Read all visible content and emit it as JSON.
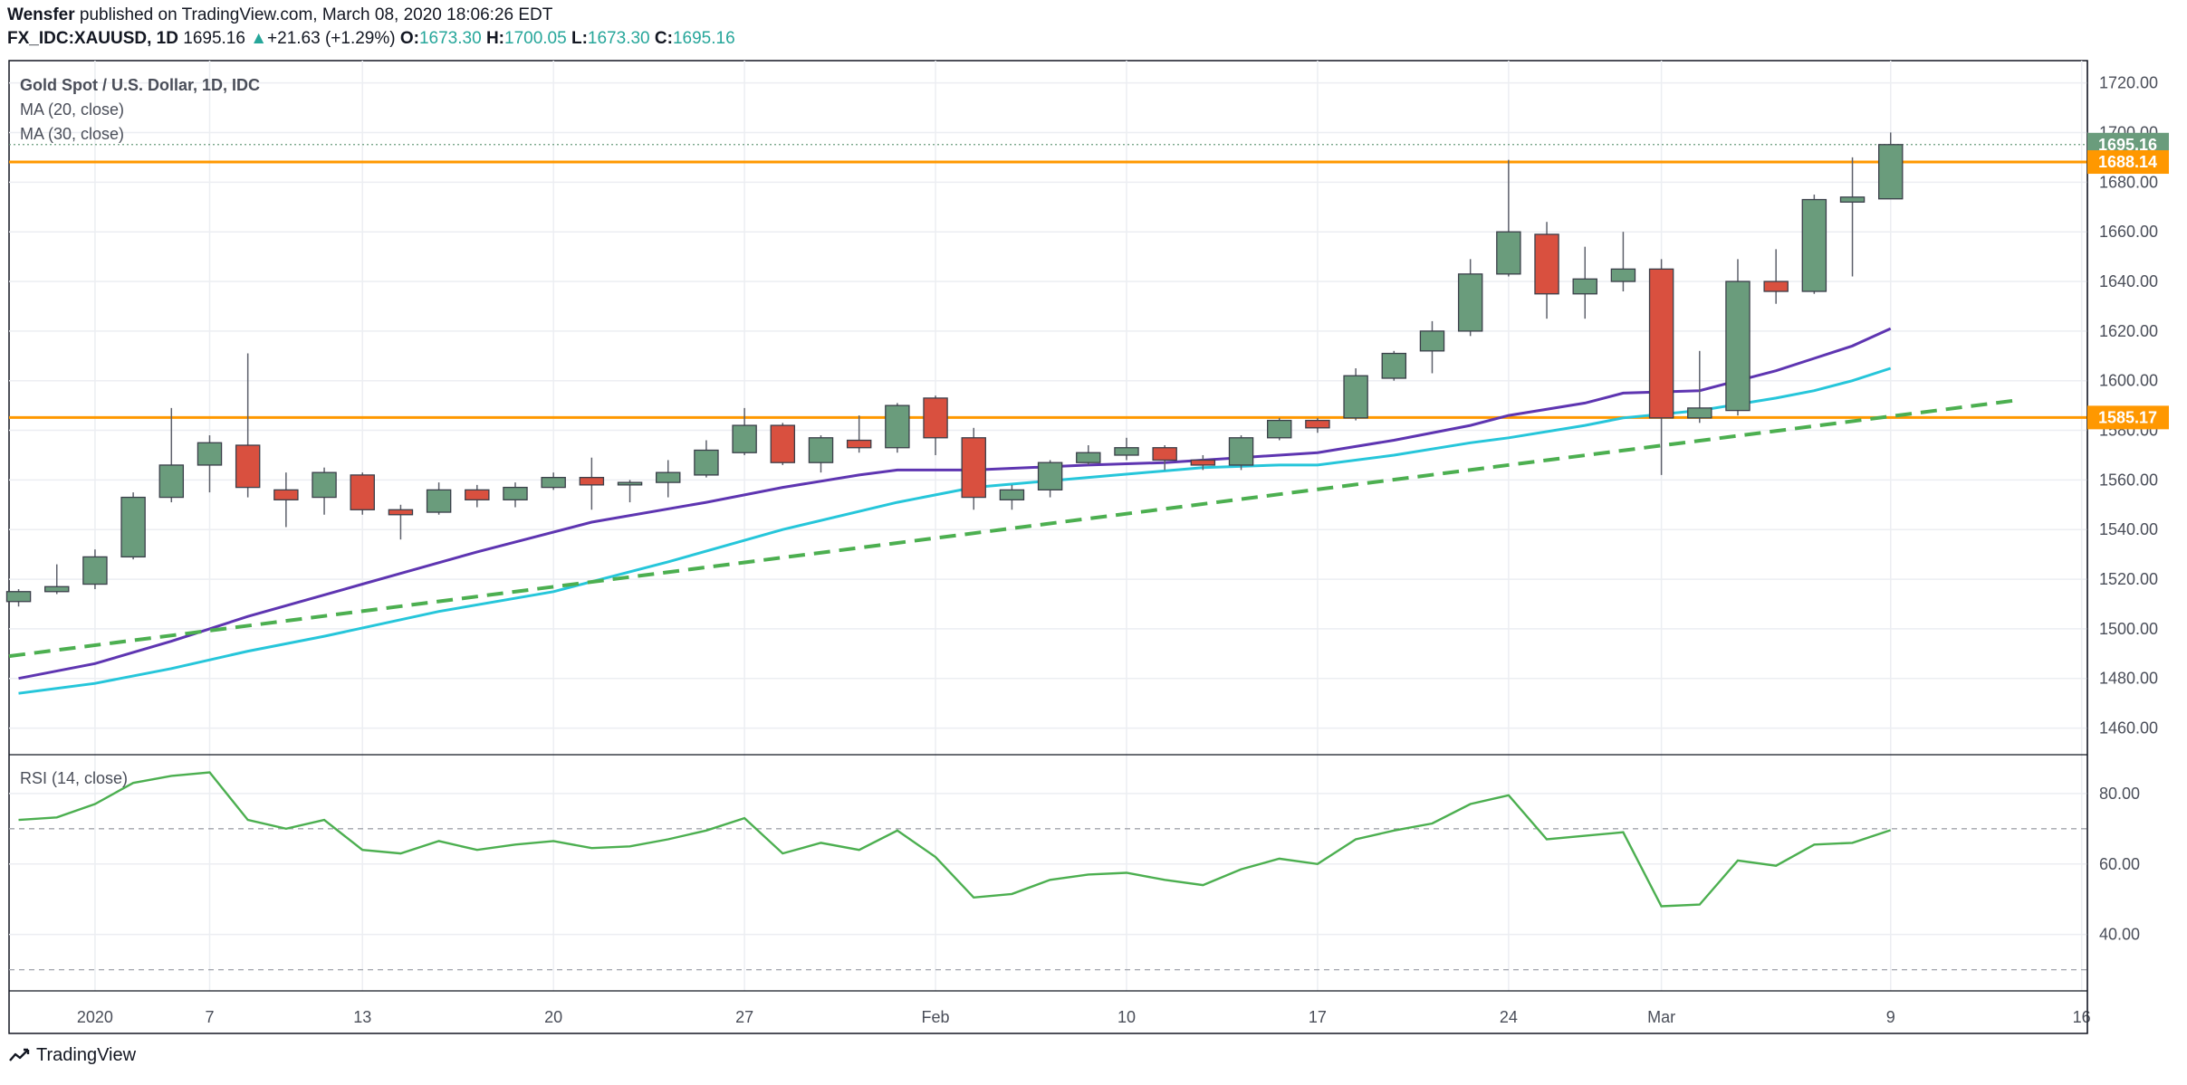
{
  "header": {
    "author": "Wensfer",
    "published_text": "published on TradingView.com, March 08, 2020 18:06:26 EDT",
    "symbol": "FX_IDC:XAUUSD, 1D",
    "last": "1695.16",
    "change": "+21.63 (+1.29%)",
    "o_label": "O:",
    "o_value": "1673.30",
    "h_label": "H:",
    "h_value": "1700.05",
    "l_label": "L:",
    "l_value": "1673.30",
    "c_label": "C:",
    "c_value": "1695.16"
  },
  "legend": {
    "title": "Gold Spot / U.S. Dollar, 1D, IDC",
    "ma20": "MA (20, close)",
    "ma30": "MA (30, close)",
    "rsi": "RSI (14, close)"
  },
  "footer": {
    "brand": "TradingView"
  },
  "colors": {
    "up": "#6a9c7c",
    "down": "#d9503f",
    "wick": "#5d606b",
    "ma20": "#5e35b1",
    "ma30": "#26c6da",
    "trend": "#4caf50",
    "level": "#ff9800",
    "rsi": "#4caf50",
    "grid": "#eceef2",
    "axis": "#4a4e59",
    "last_badge": "#6a9c7c"
  },
  "chart_data": [
    {
      "type": "candlestick",
      "title": "Gold Spot / U.S. Dollar, 1D, IDC",
      "x_tick_labels": [
        "2020",
        "7",
        "13",
        "20",
        "27",
        "Feb",
        "10",
        "17",
        "24",
        "Mar",
        "9",
        "16"
      ],
      "x_tick_index": [
        2,
        5,
        9,
        14,
        19,
        24,
        29,
        34,
        39,
        43,
        49,
        54
      ],
      "y_ticks": [
        1460,
        1480,
        1500,
        1520,
        1540,
        1560,
        1580,
        1600,
        1620,
        1640,
        1660,
        1680,
        1700,
        1720
      ],
      "ylim": [
        1450,
        1729
      ],
      "xlim": [
        -0.25,
        54.15
      ],
      "candles": [
        {
          "i": 0,
          "o": 1511,
          "h": 1516,
          "l": 1509,
          "c": 1515
        },
        {
          "i": 1,
          "o": 1515,
          "h": 1526,
          "l": 1514,
          "c": 1517
        },
        {
          "i": 2,
          "o": 1518,
          "h": 1532,
          "l": 1516,
          "c": 1529
        },
        {
          "i": 3,
          "o": 1529,
          "h": 1555,
          "l": 1528,
          "c": 1553
        },
        {
          "i": 4,
          "o": 1553,
          "h": 1589,
          "l": 1551,
          "c": 1566
        },
        {
          "i": 5,
          "o": 1566,
          "h": 1578,
          "l": 1555,
          "c": 1575
        },
        {
          "i": 6,
          "o": 1574,
          "h": 1611,
          "l": 1553,
          "c": 1557
        },
        {
          "i": 7,
          "o": 1556,
          "h": 1563,
          "l": 1541,
          "c": 1552
        },
        {
          "i": 8,
          "o": 1553,
          "h": 1565,
          "l": 1546,
          "c": 1563
        },
        {
          "i": 9,
          "o": 1562,
          "h": 1563,
          "l": 1546,
          "c": 1548
        },
        {
          "i": 10,
          "o": 1548,
          "h": 1550,
          "l": 1536,
          "c": 1546
        },
        {
          "i": 11,
          "o": 1547,
          "h": 1559,
          "l": 1546,
          "c": 1556
        },
        {
          "i": 12,
          "o": 1556,
          "h": 1558,
          "l": 1549,
          "c": 1552
        },
        {
          "i": 13,
          "o": 1552,
          "h": 1559,
          "l": 1549,
          "c": 1557
        },
        {
          "i": 14,
          "o": 1557,
          "h": 1563,
          "l": 1556,
          "c": 1561
        },
        {
          "i": 15,
          "o": 1561,
          "h": 1569,
          "l": 1548,
          "c": 1558
        },
        {
          "i": 16,
          "o": 1558,
          "h": 1560,
          "l": 1551,
          "c": 1559
        },
        {
          "i": 17,
          "o": 1559,
          "h": 1568,
          "l": 1553,
          "c": 1563
        },
        {
          "i": 18,
          "o": 1562,
          "h": 1576,
          "l": 1561,
          "c": 1572
        },
        {
          "i": 19,
          "o": 1571,
          "h": 1589,
          "l": 1570,
          "c": 1582
        },
        {
          "i": 20,
          "o": 1582,
          "h": 1583,
          "l": 1566,
          "c": 1567
        },
        {
          "i": 21,
          "o": 1567,
          "h": 1578,
          "l": 1563,
          "c": 1577
        },
        {
          "i": 22,
          "o": 1576,
          "h": 1586,
          "l": 1571,
          "c": 1573
        },
        {
          "i": 23,
          "o": 1573,
          "h": 1591,
          "l": 1571,
          "c": 1590
        },
        {
          "i": 24,
          "o": 1593,
          "h": 1594,
          "l": 1570,
          "c": 1577
        },
        {
          "i": 25,
          "o": 1577,
          "h": 1581,
          "l": 1548,
          "c": 1553
        },
        {
          "i": 26,
          "o": 1552,
          "h": 1558,
          "l": 1548,
          "c": 1556
        },
        {
          "i": 27,
          "o": 1556,
          "h": 1568,
          "l": 1553,
          "c": 1567
        },
        {
          "i": 28,
          "o": 1567,
          "h": 1574,
          "l": 1566,
          "c": 1571
        },
        {
          "i": 29,
          "o": 1570,
          "h": 1577,
          "l": 1568,
          "c": 1573
        },
        {
          "i": 30,
          "o": 1573,
          "h": 1574,
          "l": 1564,
          "c": 1568
        },
        {
          "i": 31,
          "o": 1568,
          "h": 1570,
          "l": 1564,
          "c": 1566
        },
        {
          "i": 32,
          "o": 1566,
          "h": 1578,
          "l": 1564,
          "c": 1577
        },
        {
          "i": 33,
          "o": 1577,
          "h": 1585,
          "l": 1576,
          "c": 1584
        },
        {
          "i": 34,
          "o": 1584,
          "h": 1585,
          "l": 1579,
          "c": 1581
        },
        {
          "i": 35,
          "o": 1585,
          "h": 1605,
          "l": 1584,
          "c": 1602
        },
        {
          "i": 36,
          "o": 1601,
          "h": 1612,
          "l": 1600,
          "c": 1611
        },
        {
          "i": 37,
          "o": 1612,
          "h": 1624,
          "l": 1603,
          "c": 1620
        },
        {
          "i": 38,
          "o": 1620,
          "h": 1649,
          "l": 1618,
          "c": 1643
        },
        {
          "i": 39,
          "o": 1643,
          "h": 1689,
          "l": 1642,
          "c": 1660
        },
        {
          "i": 40,
          "o": 1659,
          "h": 1664,
          "l": 1625,
          "c": 1635
        },
        {
          "i": 41,
          "o": 1635,
          "h": 1654,
          "l": 1625,
          "c": 1641
        },
        {
          "i": 42,
          "o": 1640,
          "h": 1660,
          "l": 1636,
          "c": 1645
        },
        {
          "i": 43,
          "o": 1645,
          "h": 1649,
          "l": 1562,
          "c": 1585
        },
        {
          "i": 44,
          "o": 1585,
          "h": 1612,
          "l": 1583,
          "c": 1589
        },
        {
          "i": 45,
          "o": 1588,
          "h": 1649,
          "l": 1586,
          "c": 1640
        },
        {
          "i": 46,
          "o": 1640,
          "h": 1653,
          "l": 1631,
          "c": 1636
        },
        {
          "i": 47,
          "o": 1636,
          "h": 1675,
          "l": 1635,
          "c": 1673
        },
        {
          "i": 48,
          "o": 1672,
          "h": 1690,
          "l": 1642,
          "c": 1674
        },
        {
          "i": 49,
          "o": 1673.3,
          "h": 1700.05,
          "l": 1673.3,
          "c": 1695.16
        }
      ],
      "ma20": [
        [
          0,
          1480
        ],
        [
          2,
          1486
        ],
        [
          4,
          1495
        ],
        [
          5,
          1500
        ],
        [
          6,
          1505
        ],
        [
          9,
          1518
        ],
        [
          12,
          1531
        ],
        [
          15,
          1543
        ],
        [
          18,
          1551
        ],
        [
          20,
          1557
        ],
        [
          22,
          1562
        ],
        [
          23,
          1564
        ],
        [
          25,
          1564
        ],
        [
          28,
          1566
        ],
        [
          30,
          1567
        ],
        [
          32,
          1569
        ],
        [
          34,
          1571
        ],
        [
          36,
          1576
        ],
        [
          38,
          1582
        ],
        [
          39,
          1586
        ],
        [
          41,
          1591
        ],
        [
          42,
          1595
        ],
        [
          44,
          1596
        ],
        [
          45,
          1600
        ],
        [
          46,
          1604
        ],
        [
          47,
          1609
        ],
        [
          48,
          1614
        ],
        [
          49,
          1621
        ]
      ],
      "ma30": [
        [
          0,
          1474
        ],
        [
          2,
          1478
        ],
        [
          4,
          1484
        ],
        [
          6,
          1491
        ],
        [
          8,
          1497
        ],
        [
          11,
          1507
        ],
        [
          14,
          1515
        ],
        [
          17,
          1527
        ],
        [
          20,
          1540
        ],
        [
          23,
          1551
        ],
        [
          25,
          1557
        ],
        [
          28,
          1561
        ],
        [
          31,
          1565
        ],
        [
          33,
          1566
        ],
        [
          34,
          1566
        ],
        [
          36,
          1570
        ],
        [
          38,
          1575
        ],
        [
          39,
          1577
        ],
        [
          41,
          1582
        ],
        [
          42,
          1585
        ],
        [
          44,
          1588
        ],
        [
          46,
          1593
        ],
        [
          47,
          1596
        ],
        [
          48,
          1600
        ],
        [
          49,
          1605
        ]
      ],
      "trendline": [
        [
          -0.25,
          1489
        ],
        [
          52.25,
          1592
        ]
      ],
      "levels": [
        1688.14,
        1585.17
      ],
      "last_price": 1695.16,
      "price_badges": [
        "1695.16",
        "1688.14",
        "1585.17"
      ]
    },
    {
      "type": "line",
      "title": "RSI (14, close)",
      "y_ticks": [
        40,
        60,
        80
      ],
      "y_tick_labels": [
        "40.00",
        "60.00",
        "80.00"
      ],
      "ylim": [
        24,
        91
      ],
      "reference_lines": [
        70,
        30
      ],
      "values": [
        72.5,
        73.2,
        77,
        83,
        85,
        86,
        72.5,
        70,
        72.5,
        64,
        63,
        66.5,
        64,
        65.5,
        66.5,
        64.5,
        65,
        67,
        69.5,
        73,
        63,
        66,
        64,
        69.5,
        62,
        50.5,
        51.5,
        55.5,
        57,
        57.5,
        55.5,
        54,
        58.5,
        61.5,
        60,
        67,
        69.5,
        71.5,
        77,
        79.5,
        67,
        68,
        69,
        48,
        48.5,
        61,
        59.5,
        65.5,
        66,
        69.6
      ]
    }
  ]
}
